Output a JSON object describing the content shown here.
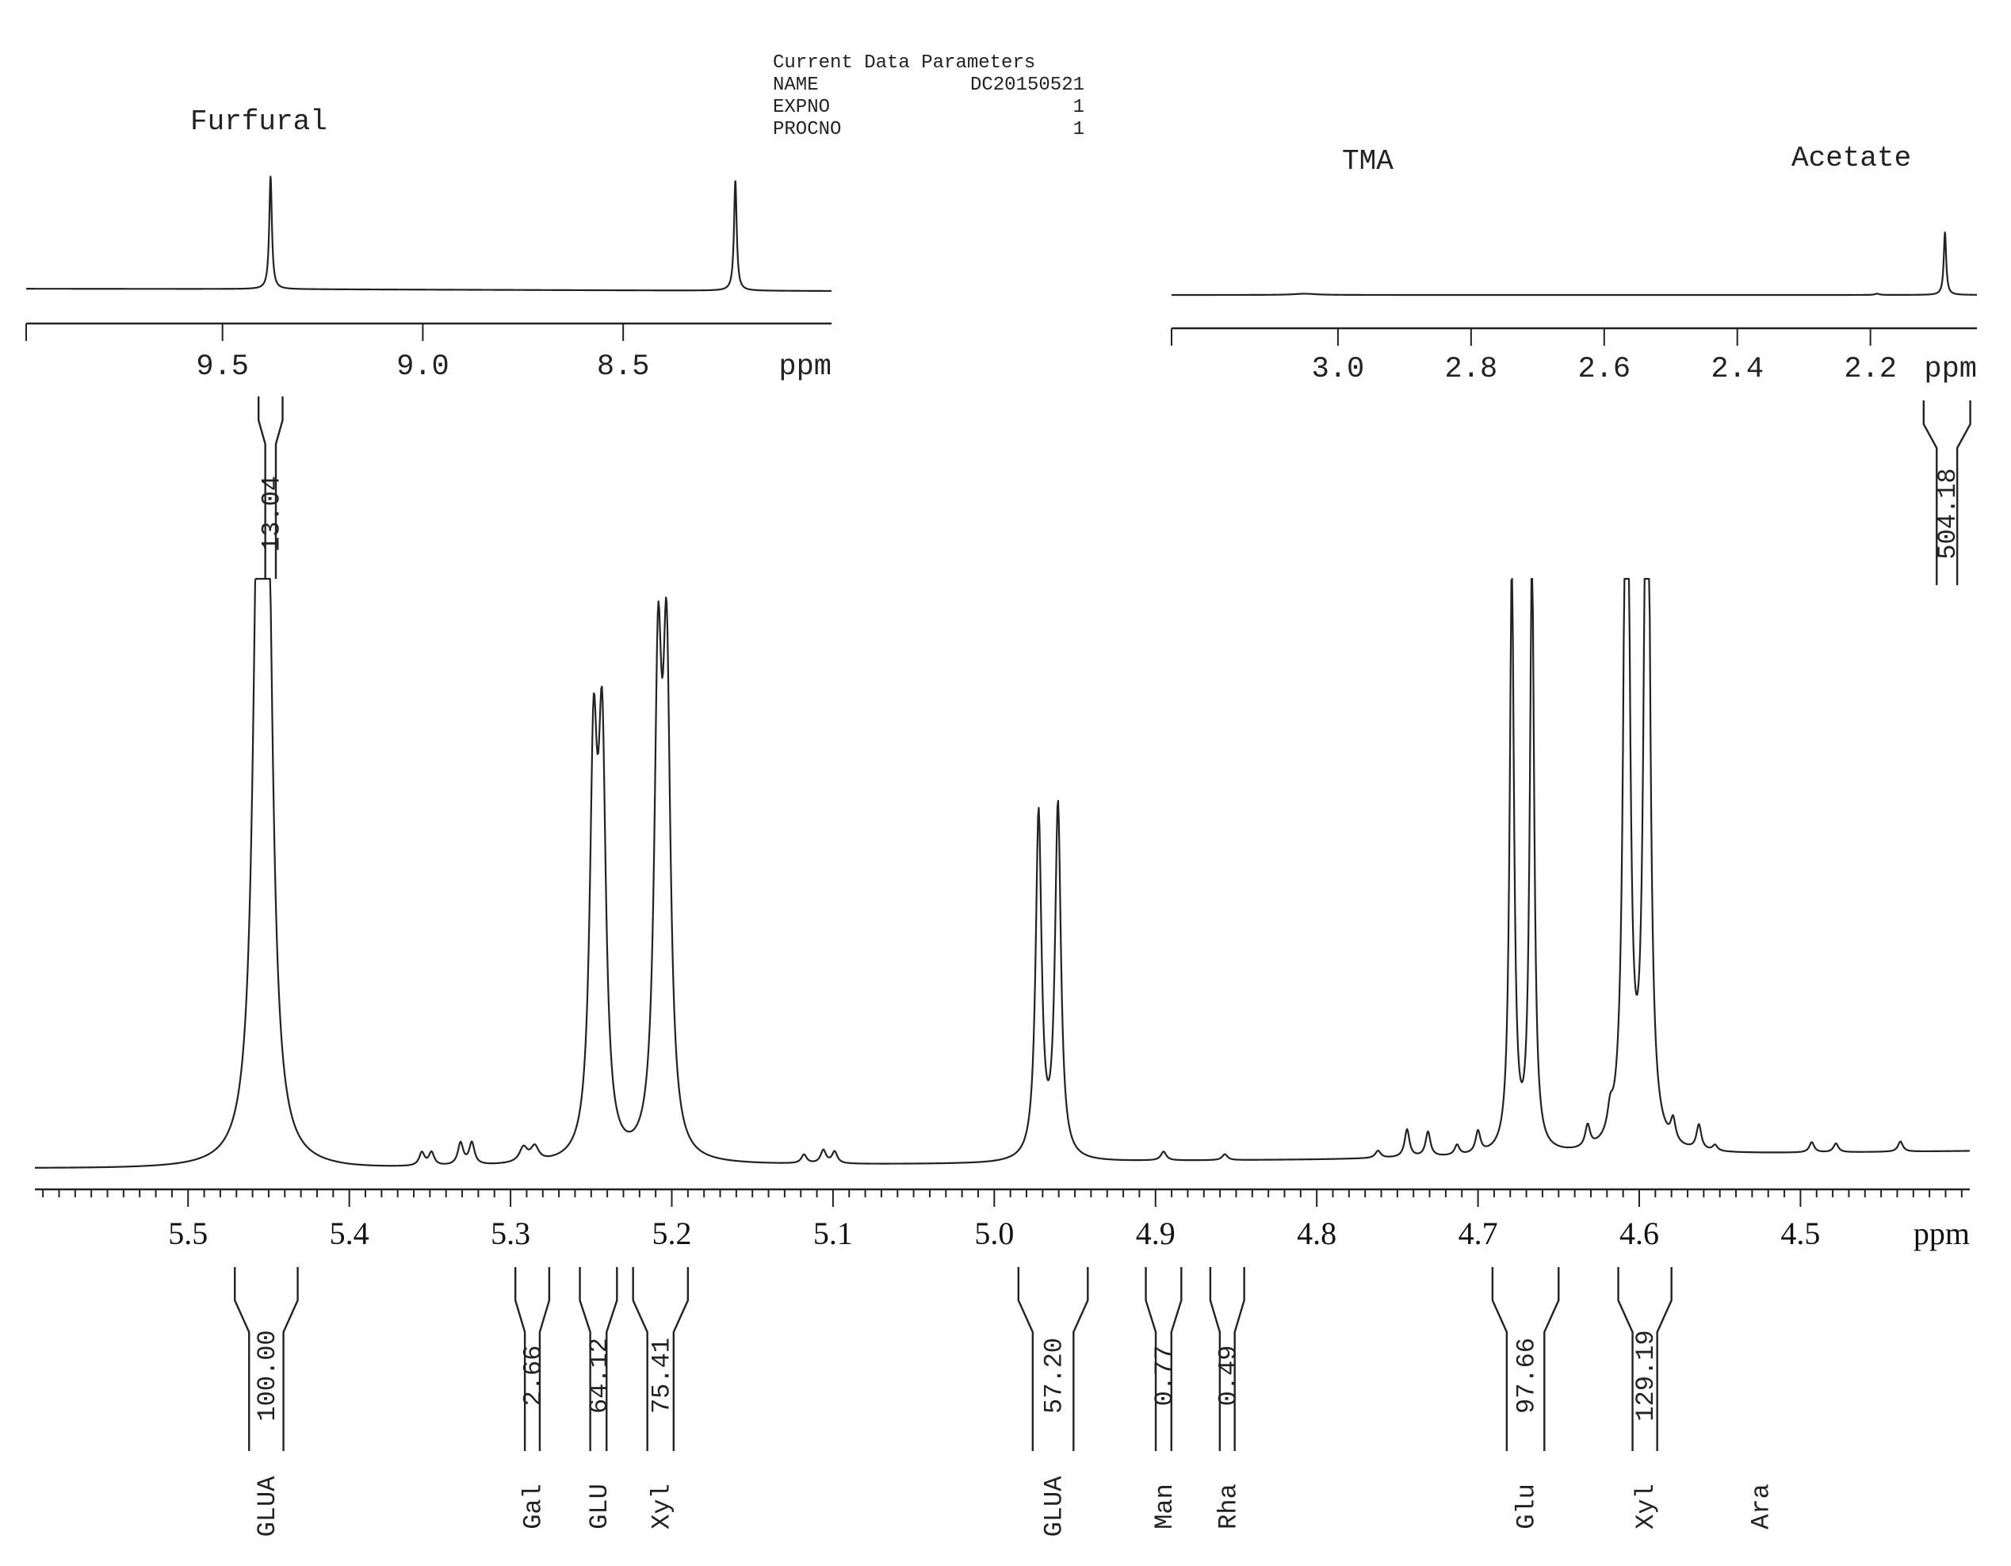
{
  "params": {
    "heading": "Current Data Parameters",
    "rows": [
      {
        "key": "NAME",
        "value": "DC20150521"
      },
      {
        "key": "EXPNO",
        "value": "1"
      },
      {
        "key": "PROCNO",
        "value": "1"
      }
    ]
  },
  "chart_data": [
    {
      "id": "inset-left",
      "type": "line",
      "title": "Furfural",
      "xlabel": "ppm",
      "xlim": [
        9.99,
        7.98
      ],
      "x_reversed": true,
      "ticks": [
        9.5,
        9.0,
        8.5
      ],
      "tick_labels": [
        "9.5",
        "9.0",
        "8.5"
      ],
      "baseline": [
        [
          9.99,
          0.02
        ],
        [
          9.5,
          0.018
        ],
        [
          9.0,
          0.012
        ],
        [
          8.5,
          0.006
        ],
        [
          7.98,
          0.0
        ]
      ],
      "peaks": [
        {
          "x": 9.38,
          "height": 1.0,
          "width": 0.004
        },
        {
          "x": 8.22,
          "height": 0.98,
          "width": 0.004
        }
      ],
      "integrals": [
        {
          "from": 9.41,
          "to": 9.35,
          "value": "13.04"
        }
      ]
    },
    {
      "id": "inset-right",
      "type": "line",
      "title": "Acetate",
      "extra_label": "TMA",
      "xlabel": "ppm",
      "xlim": [
        3.25,
        2.04
      ],
      "x_reversed": true,
      "ticks": [
        3.0,
        2.8,
        2.6,
        2.4,
        2.2
      ],
      "tick_labels": [
        "3.0",
        "2.8",
        "2.6",
        "2.4",
        "2.2"
      ],
      "baseline": [
        [
          3.25,
          0.0
        ],
        [
          2.04,
          0.0
        ]
      ],
      "peaks": [
        {
          "x": 2.088,
          "height": 1.0,
          "width": 0.0022
        },
        {
          "x": 3.05,
          "height": 0.02,
          "width": 0.02
        },
        {
          "x": 2.19,
          "height": 0.02,
          "width": 0.004
        }
      ],
      "integrals": [
        {
          "from": 2.12,
          "to": 2.05,
          "value": "504.18"
        }
      ]
    },
    {
      "id": "main",
      "type": "line",
      "xlabel": "ppm",
      "xlim": [
        5.595,
        4.395
      ],
      "x_reversed": true,
      "ticks": [
        5.5,
        5.4,
        5.3,
        5.2,
        5.1,
        5.0,
        4.9,
        4.8,
        4.7,
        4.6,
        4.5
      ],
      "tick_labels": [
        "5.5",
        "5.4",
        "5.3",
        "5.2",
        "5.1",
        "5.0",
        "4.9",
        "4.8",
        "4.7",
        "4.6",
        "4.5"
      ],
      "minor_tick_step": 0.01,
      "baseline": [
        [
          5.595,
          0.0
        ],
        [
          5.4,
          -0.002
        ],
        [
          5.3,
          0.002
        ],
        [
          5.2,
          0.004
        ],
        [
          5.0,
          0.006
        ],
        [
          4.9,
          0.01
        ],
        [
          4.8,
          0.012
        ],
        [
          4.6,
          0.018
        ],
        [
          4.395,
          0.024
        ]
      ],
      "peaks": [
        {
          "x": 5.4565,
          "height": 0.8,
          "width": 0.0038
        },
        {
          "x": 5.4508,
          "height": 0.8,
          "width": 0.0038
        },
        {
          "x": 5.2485,
          "height": 0.52,
          "width": 0.0028
        },
        {
          "x": 5.2432,
          "height": 0.53,
          "width": 0.0028
        },
        {
          "x": 5.2085,
          "height": 0.62,
          "width": 0.0028
        },
        {
          "x": 5.2032,
          "height": 0.63,
          "width": 0.0028
        },
        {
          "x": 4.9725,
          "height": 0.47,
          "width": 0.0022
        },
        {
          "x": 4.9605,
          "height": 0.48,
          "width": 0.0022
        },
        {
          "x": 4.679,
          "height": 0.8,
          "width": 0.0016
        },
        {
          "x": 4.6665,
          "height": 0.82,
          "width": 0.0016
        },
        {
          "x": 4.6078,
          "height": 1.3,
          "width": 0.0019
        },
        {
          "x": 4.5952,
          "height": 1.3,
          "width": 0.0019
        },
        {
          "x": 5.355,
          "height": 0.018,
          "width": 0.002
        },
        {
          "x": 5.349,
          "height": 0.018,
          "width": 0.002
        },
        {
          "x": 5.331,
          "height": 0.03,
          "width": 0.002
        },
        {
          "x": 5.324,
          "height": 0.03,
          "width": 0.002
        },
        {
          "x": 5.292,
          "height": 0.02,
          "width": 0.003
        },
        {
          "x": 5.285,
          "height": 0.02,
          "width": 0.003
        },
        {
          "x": 5.118,
          "height": 0.012,
          "width": 0.002
        },
        {
          "x": 5.106,
          "height": 0.018,
          "width": 0.002
        },
        {
          "x": 5.099,
          "height": 0.016,
          "width": 0.002
        },
        {
          "x": 4.895,
          "height": 0.012,
          "width": 0.002
        },
        {
          "x": 4.857,
          "height": 0.008,
          "width": 0.002
        },
        {
          "x": 4.762,
          "height": 0.01,
          "width": 0.002
        },
        {
          "x": 4.744,
          "height": 0.038,
          "width": 0.0018
        },
        {
          "x": 4.731,
          "height": 0.034,
          "width": 0.0018
        },
        {
          "x": 4.713,
          "height": 0.014,
          "width": 0.0018
        },
        {
          "x": 4.7,
          "height": 0.03,
          "width": 0.0018
        },
        {
          "x": 4.632,
          "height": 0.03,
          "width": 0.0018
        },
        {
          "x": 4.618,
          "height": 0.03,
          "width": 0.002
        },
        {
          "x": 4.579,
          "height": 0.03,
          "width": 0.0018
        },
        {
          "x": 4.563,
          "height": 0.034,
          "width": 0.0018
        },
        {
          "x": 4.553,
          "height": 0.008,
          "width": 0.0018
        },
        {
          "x": 4.493,
          "height": 0.014,
          "width": 0.0018
        },
        {
          "x": 4.478,
          "height": 0.012,
          "width": 0.0018
        },
        {
          "x": 4.438,
          "height": 0.014,
          "width": 0.0018
        }
      ],
      "integrals": [
        {
          "from": 5.471,
          "to": 5.432,
          "value": "100.00",
          "sugar": "GLUA"
        },
        {
          "from": 5.297,
          "to": 5.276,
          "value": "2.66",
          "sugar": "Gal"
        },
        {
          "from": 5.257,
          "to": 5.234,
          "value": "64.12",
          "sugar": "GLU"
        },
        {
          "from": 5.224,
          "to": 5.19,
          "value": "75.41",
          "sugar": "Xyl"
        },
        {
          "from": 4.985,
          "to": 4.942,
          "value": "57.20",
          "sugar": "GLUA"
        },
        {
          "from": 4.906,
          "to": 4.884,
          "value": "0.77",
          "sugar": "Man"
        },
        {
          "from": 4.866,
          "to": 4.845,
          "value": "0.49",
          "sugar": "Rha"
        },
        {
          "from": 4.691,
          "to": 4.65,
          "value": "97.66",
          "sugar": "Glu"
        },
        {
          "from": 4.613,
          "to": 4.58,
          "value": "129.19",
          "sugar": "Xyl"
        }
      ],
      "extra_labels": [
        {
          "x": 4.525,
          "text": "Ara"
        }
      ]
    }
  ]
}
